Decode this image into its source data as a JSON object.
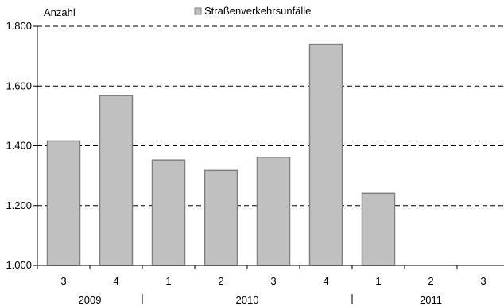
{
  "chart_data": {
    "type": "bar",
    "ylabel": "Anzahl",
    "legend": {
      "label": "Straßenverkehrsunfälle",
      "placement": "top-center"
    },
    "bar_color": "#c0c0c0",
    "bar_border_color": "#808080",
    "grid": true,
    "ylim": [
      1000,
      1800
    ],
    "yticks": [
      1000,
      1200,
      1400,
      1600,
      1800
    ],
    "ytick_labels": [
      "1.000",
      "1.200",
      "1.400",
      "1.600",
      "1.800"
    ],
    "categories": [
      "3",
      "4",
      "1",
      "2",
      "3",
      "4",
      "1",
      "2",
      "3"
    ],
    "year_groups": [
      {
        "label": "2009",
        "start": 0,
        "end": 1
      },
      {
        "label": "2010",
        "start": 2,
        "end": 5
      },
      {
        "label": "2011",
        "start": 6,
        "end": 8
      }
    ],
    "series": [
      {
        "name": "Straßenverkehrsunfälle",
        "values": [
          1416,
          1568,
          1353,
          1318,
          1362,
          1740,
          1241,
          null,
          null
        ]
      }
    ]
  }
}
